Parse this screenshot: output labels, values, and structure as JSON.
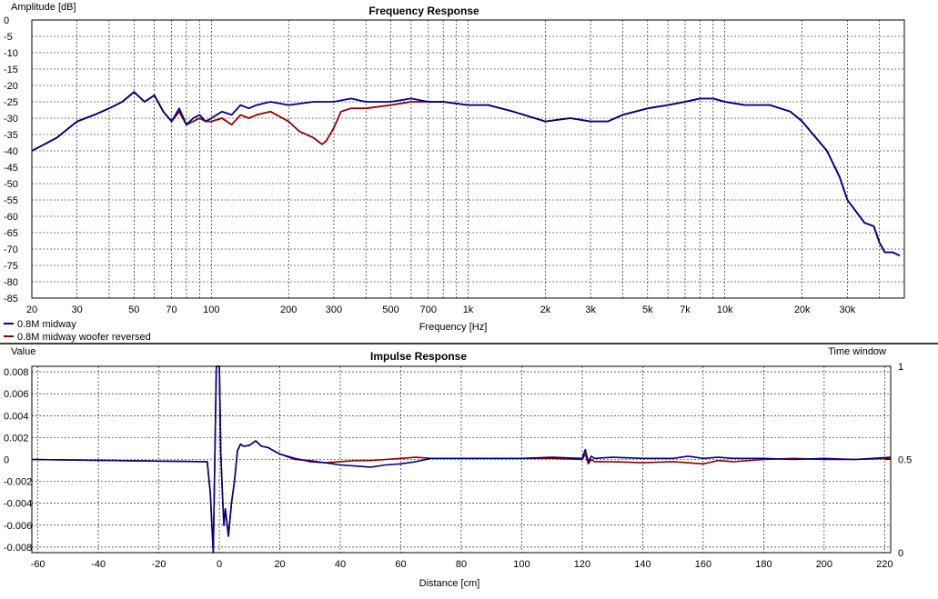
{
  "chart_data": [
    {
      "type": "line",
      "title": "Frequency Response",
      "xlabel": "Frequency [Hz]",
      "ylabel": "Amplitude [dB]",
      "xscale": "log",
      "xlim": [
        20,
        50000
      ],
      "ylim": [
        -85,
        0
      ],
      "grid": true,
      "legend_position": "bottom-left",
      "y_ticks": [
        "0",
        "-5",
        "-10",
        "-15",
        "-20",
        "-25",
        "-30",
        "-35",
        "-40",
        "-45",
        "-50",
        "-55",
        "-60",
        "-65",
        "-70",
        "-75",
        "-80",
        "-85"
      ],
      "x_ticks": [
        {
          "value": 20,
          "label": "20"
        },
        {
          "value": 30,
          "label": "30"
        },
        {
          "value": 50,
          "label": "50"
        },
        {
          "value": 70,
          "label": "70"
        },
        {
          "value": 100,
          "label": "100"
        },
        {
          "value": 200,
          "label": "200"
        },
        {
          "value": 300,
          "label": "300"
        },
        {
          "value": 500,
          "label": "500"
        },
        {
          "value": 700,
          "label": "700"
        },
        {
          "value": 1000,
          "label": "1k"
        },
        {
          "value": 2000,
          "label": "2k"
        },
        {
          "value": 3000,
          "label": "3k"
        },
        {
          "value": 5000,
          "label": "5k"
        },
        {
          "value": 7000,
          "label": "7k"
        },
        {
          "value": 10000,
          "label": "10k"
        },
        {
          "value": 20000,
          "label": "20k"
        },
        {
          "value": 30000,
          "label": "30k"
        }
      ],
      "series": [
        {
          "name": "0.8M midway",
          "color": "#000080",
          "x": [
            20,
            25,
            30,
            35,
            40,
            45,
            50,
            55,
            60,
            65,
            70,
            75,
            80,
            85,
            90,
            95,
            100,
            110,
            120,
            130,
            140,
            150,
            170,
            200,
            250,
            300,
            350,
            400,
            500,
            600,
            700,
            800,
            1000,
            1200,
            1500,
            2000,
            2500,
            3000,
            3500,
            4000,
            5000,
            6000,
            7000,
            8000,
            9000,
            10000,
            12000,
            15000,
            18000,
            20000,
            25000,
            28000,
            30000,
            35000,
            38000,
            40000,
            42000,
            45000,
            48000
          ],
          "y": [
            -40,
            -36,
            -31,
            -29,
            -27,
            -25,
            -22,
            -25,
            -23,
            -28,
            -31,
            -27,
            -32,
            -30,
            -29,
            -31,
            -30,
            -28,
            -29,
            -26,
            -27,
            -26,
            -25,
            -26,
            -25,
            -25,
            -24,
            -25,
            -25,
            -24,
            -25,
            -25,
            -26,
            -26,
            -28,
            -31,
            -30,
            -31,
            -31,
            -29,
            -27,
            -26,
            -25,
            -24,
            -24,
            -25,
            -26,
            -26,
            -28,
            -31,
            -40,
            -48,
            -55,
            -62,
            -63,
            -68,
            -71,
            -71,
            -72
          ]
        },
        {
          "name": "0.8M midway woofer reversed",
          "color": "#8b0000",
          "x": [
            20,
            25,
            30,
            35,
            40,
            45,
            50,
            55,
            60,
            65,
            70,
            75,
            80,
            85,
            90,
            95,
            100,
            110,
            120,
            130,
            140,
            150,
            170,
            200,
            220,
            250,
            270,
            280,
            300,
            320,
            350,
            400,
            500,
            600,
            700,
            800,
            1000,
            1200,
            1500,
            2000,
            2500,
            3000,
            3500,
            4000,
            5000,
            6000,
            7000,
            8000,
            9000,
            10000,
            12000,
            15000,
            18000,
            20000,
            25000,
            28000,
            30000,
            35000,
            38000,
            40000,
            42000,
            45000,
            48000
          ],
          "y": [
            -40,
            -36,
            -31,
            -29,
            -27,
            -25,
            -22,
            -25,
            -23,
            -28,
            -31,
            -28,
            -32,
            -31,
            -30,
            -31,
            -31,
            -30,
            -32,
            -29,
            -30,
            -29,
            -28,
            -31,
            -34,
            -36,
            -38,
            -37,
            -33,
            -28,
            -27,
            -27,
            -26,
            -25,
            -25,
            -25,
            -26,
            -26,
            -28,
            -31,
            -30,
            -31,
            -31,
            -29,
            -27,
            -26,
            -25,
            -24,
            -24,
            -25,
            -26,
            -26,
            -28,
            -31,
            -40,
            -48,
            -55,
            -62,
            -63,
            -68,
            -71,
            -71,
            -72
          ]
        }
      ]
    },
    {
      "type": "line",
      "title": "Impulse Response",
      "xlabel": "Distance [cm]",
      "ylabel": "Value",
      "y2label": "Time window",
      "xlim": [
        -62,
        222
      ],
      "ylim": [
        -0.0085,
        0.0085
      ],
      "y2lim": [
        0,
        1
      ],
      "grid": true,
      "x_ticks": [
        "-60",
        "-40",
        "-20",
        "0",
        "20",
        "40",
        "60",
        "80",
        "100",
        "120",
        "140",
        "160",
        "180",
        "200",
        "220"
      ],
      "y_ticks": [
        "0.008",
        "0.006",
        "0.004",
        "0.002",
        "0",
        "-0.002",
        "-0.004",
        "-0.006",
        "-0.008"
      ],
      "y2_ticks": [
        "1",
        "0.5",
        "0"
      ],
      "series": [
        {
          "name": "0.8M midway",
          "color": "#000080",
          "x": [
            -62,
            -4,
            -3,
            -2,
            -1,
            0,
            0.5,
            1,
            1.5,
            2,
            3,
            4,
            5,
            6,
            7,
            8,
            10,
            12,
            14,
            16,
            18,
            20,
            25,
            30,
            35,
            40,
            45,
            50,
            55,
            60,
            65,
            70,
            80,
            100,
            110,
            120,
            121,
            122,
            123,
            124,
            130,
            140,
            150,
            155,
            160,
            165,
            170,
            180,
            190,
            200,
            210,
            222
          ],
          "y": [
            0,
            -0.0002,
            -0.003,
            -0.0085,
            0.0085,
            0.0085,
            0.0005,
            -0.003,
            -0.006,
            -0.0045,
            -0.007,
            -0.004,
            -0.002,
            0.0008,
            0.0014,
            0.0012,
            0.0013,
            0.0017,
            0.0012,
            0.0011,
            0.0008,
            0.0005,
            0.0001,
            -0.0002,
            -0.0003,
            -0.0005,
            -0.0006,
            -0.0007,
            -0.0005,
            -0.0004,
            -0.0002,
            0.0001,
            0.0001,
            0.0001,
            0.0002,
            0.0001,
            0.0009,
            -0.0002,
            0.0003,
            0.0001,
            0.0002,
            0.0001,
            0.0001,
            0.0003,
            0.0001,
            0.0002,
            0.0001,
            0.0001,
            0,
            0.0001,
            0,
            0.0002
          ]
        },
        {
          "name": "0.8M midway woofer reversed",
          "color": "#8b0000",
          "x": [
            -62,
            -4,
            -3,
            -2,
            -1,
            0,
            0.5,
            1,
            1.5,
            2,
            3,
            4,
            5,
            6,
            7,
            8,
            10,
            12,
            14,
            16,
            18,
            20,
            25,
            30,
            35,
            40,
            45,
            50,
            55,
            60,
            65,
            70,
            80,
            100,
            110,
            120,
            121,
            122,
            123,
            124,
            130,
            140,
            150,
            155,
            160,
            165,
            170,
            180,
            190,
            200,
            210,
            222
          ],
          "y": [
            0,
            -0.0002,
            -0.003,
            -0.0085,
            0.0085,
            0.0085,
            0.0005,
            -0.003,
            -0.006,
            -0.0045,
            -0.007,
            -0.004,
            -0.002,
            0.0008,
            0.0014,
            0.0012,
            0.0013,
            0.0017,
            0.0012,
            0.0011,
            0.0008,
            0.0005,
            0,
            -0.0001,
            -0.0003,
            -0.0002,
            -0.0001,
            -0.0001,
            0,
            0.0001,
            0.0002,
            0.0001,
            0.0001,
            0.0001,
            0.0001,
            0,
            0.0005,
            -0.0004,
            0,
            -0.0002,
            -0.0002,
            -0.0003,
            -0.0002,
            -0.0003,
            -0.0004,
            -0.0001,
            -0.0002,
            0,
            0.0001,
            0,
            0,
            0.0001
          ]
        }
      ]
    }
  ]
}
